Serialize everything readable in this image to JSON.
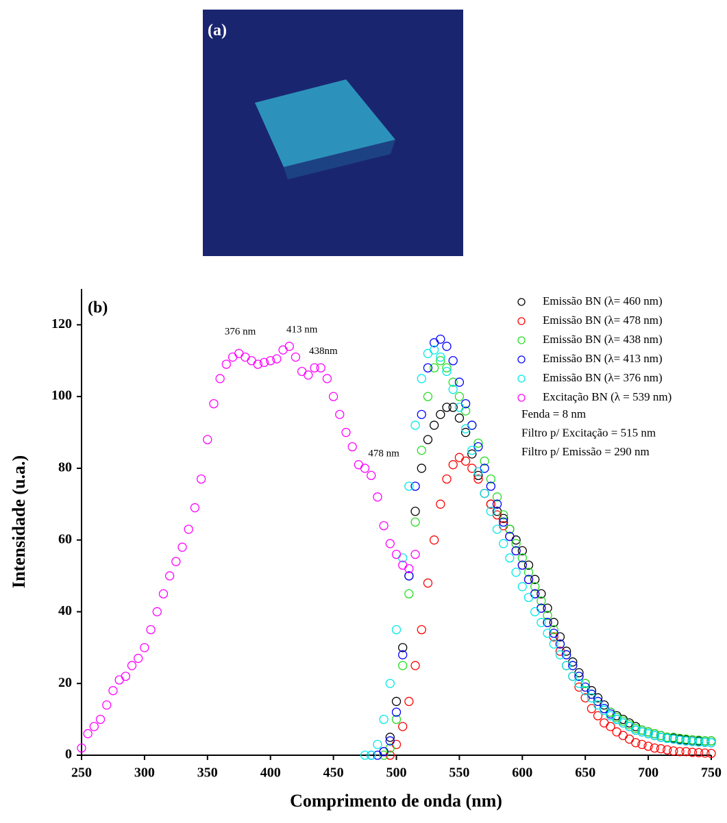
{
  "photo": {
    "label": "(a)"
  },
  "chart_data": {
    "type": "scatter",
    "panel_label": "(b)",
    "x_label": "Comprimento de onda (nm)",
    "y_label": "Intensidade (u.a.)",
    "xlim": [
      250,
      750
    ],
    "xticks": [
      250,
      300,
      350,
      400,
      450,
      500,
      550,
      600,
      650,
      700,
      750
    ],
    "ylim": [
      0,
      130
    ],
    "yticks": [
      0,
      20,
      40,
      60,
      80,
      100,
      120
    ],
    "x": [
      250,
      255,
      260,
      265,
      270,
      275,
      280,
      285,
      290,
      295,
      300,
      305,
      310,
      315,
      320,
      325,
      330,
      335,
      340,
      345,
      350,
      355,
      360,
      365,
      370,
      375,
      380,
      385,
      390,
      395,
      400,
      405,
      410,
      415,
      420,
      425,
      430,
      435,
      440,
      445,
      450,
      455,
      460,
      465,
      470,
      475,
      480,
      485,
      490,
      495,
      500,
      505,
      510,
      515,
      520,
      525,
      530,
      535,
      540,
      545,
      550,
      555,
      560,
      565,
      570,
      575,
      580,
      585,
      590,
      595,
      600,
      605,
      610,
      615,
      620,
      625,
      630,
      635,
      640,
      645,
      650,
      655,
      660,
      665,
      670,
      675,
      680,
      685,
      690,
      695,
      700,
      705,
      710,
      715,
      720,
      725,
      730,
      735,
      740,
      745,
      750
    ],
    "series": [
      {
        "name": "Emissão BN (λ= 460 nm)",
        "color": "#000000",
        "values": [
          null,
          null,
          null,
          null,
          null,
          null,
          null,
          null,
          null,
          null,
          null,
          null,
          null,
          null,
          null,
          null,
          null,
          null,
          null,
          null,
          null,
          null,
          null,
          null,
          null,
          null,
          null,
          null,
          null,
          null,
          null,
          null,
          null,
          null,
          null,
          null,
          null,
          null,
          null,
          null,
          null,
          null,
          null,
          null,
          null,
          null,
          null,
          null,
          1,
          5,
          15,
          30,
          50,
          68,
          80,
          88,
          92,
          95,
          97,
          97,
          94,
          90,
          84,
          78,
          73,
          70,
          68,
          66,
          63,
          60,
          57,
          53,
          49,
          45,
          41,
          37,
          33,
          29,
          26,
          23,
          20,
          18,
          16,
          14,
          12,
          11,
          10,
          9,
          8,
          7,
          6.5,
          6,
          5.5,
          5,
          4.8,
          4.5,
          4.3,
          4.2,
          4,
          4,
          4
        ]
      },
      {
        "name": "Emissão BN (λ= 478 nm)",
        "color": "#ff0000",
        "values": [
          null,
          null,
          null,
          null,
          null,
          null,
          null,
          null,
          null,
          null,
          null,
          null,
          null,
          null,
          null,
          null,
          null,
          null,
          null,
          null,
          null,
          null,
          null,
          null,
          null,
          null,
          null,
          null,
          null,
          null,
          null,
          null,
          null,
          null,
          null,
          null,
          null,
          null,
          null,
          null,
          null,
          null,
          null,
          null,
          null,
          null,
          null,
          null,
          null,
          0,
          3,
          8,
          15,
          25,
          35,
          48,
          60,
          70,
          77,
          81,
          83,
          82,
          80,
          77,
          73,
          70,
          67,
          64,
          61,
          57,
          53,
          49,
          45,
          41,
          37,
          33,
          29,
          25,
          22,
          19,
          16,
          13,
          11,
          9,
          8,
          6.5,
          5.5,
          4.5,
          3.5,
          3,
          2.5,
          2,
          1.8,
          1.5,
          1.2,
          1,
          1,
          0.8,
          0.7,
          0.6,
          0.5
        ]
      },
      {
        "name": "Emissão BN (λ= 438 nm)",
        "color": "#22dd22",
        "values": [
          null,
          null,
          null,
          null,
          null,
          null,
          null,
          null,
          null,
          null,
          null,
          null,
          null,
          null,
          null,
          null,
          null,
          null,
          null,
          null,
          null,
          null,
          null,
          null,
          null,
          null,
          null,
          null,
          null,
          null,
          null,
          null,
          null,
          null,
          null,
          null,
          null,
          null,
          null,
          null,
          null,
          null,
          null,
          null,
          null,
          null,
          null,
          null,
          0,
          2,
          10,
          25,
          45,
          65,
          85,
          100,
          108,
          110,
          108,
          104,
          100,
          96,
          92,
          87,
          82,
          77,
          72,
          67,
          63,
          59,
          55,
          51,
          47,
          43,
          39,
          35,
          31,
          28,
          25,
          22,
          20,
          17,
          15,
          13,
          12,
          10.5,
          9.5,
          8.5,
          7.5,
          7,
          6.5,
          6,
          5.5,
          5,
          5,
          4.7,
          4.5,
          4.3,
          4.2,
          4,
          4
        ]
      },
      {
        "name": "Emissão BN (λ= 413 nm)",
        "color": "#0000ff",
        "values": [
          null,
          null,
          null,
          null,
          null,
          null,
          null,
          null,
          null,
          null,
          null,
          null,
          null,
          null,
          null,
          null,
          null,
          null,
          null,
          null,
          null,
          null,
          null,
          null,
          null,
          null,
          null,
          null,
          null,
          null,
          null,
          null,
          null,
          null,
          null,
          null,
          null,
          null,
          null,
          null,
          null,
          null,
          null,
          null,
          null,
          null,
          0,
          0,
          1,
          4,
          12,
          28,
          50,
          75,
          95,
          108,
          115,
          116,
          114,
          110,
          104,
          98,
          92,
          86,
          80,
          75,
          70,
          65,
          61,
          57,
          53,
          49,
          45,
          41,
          37,
          34,
          31,
          28,
          25,
          22,
          19,
          17,
          15,
          13,
          11.5,
          10,
          9,
          8,
          7,
          6.5,
          6,
          5.5,
          5,
          4.7,
          4.5,
          4.2,
          4,
          3.8,
          3.7,
          3.6,
          3.5
        ]
      },
      {
        "name": "Emissão BN (λ= 376 nm)",
        "color": "#00e8e8",
        "values": [
          null,
          null,
          null,
          null,
          null,
          null,
          null,
          null,
          null,
          null,
          null,
          null,
          null,
          null,
          null,
          null,
          null,
          null,
          null,
          null,
          null,
          null,
          null,
          null,
          null,
          null,
          null,
          null,
          null,
          null,
          null,
          null,
          null,
          null,
          null,
          null,
          null,
          null,
          null,
          null,
          null,
          null,
          null,
          null,
          null,
          0,
          0,
          3,
          10,
          20,
          35,
          55,
          75,
          92,
          105,
          112,
          113,
          111,
          107,
          102,
          97,
          91,
          85,
          79,
          73,
          68,
          63,
          59,
          55,
          51,
          47,
          44,
          40,
          37,
          34,
          31,
          28,
          25,
          22,
          20,
          18,
          16,
          14,
          12.5,
          11,
          10,
          9,
          8,
          7,
          6.5,
          6,
          5.5,
          5,
          4.7,
          4.5,
          4.2,
          4,
          3.8,
          3.7,
          3.6,
          3.5
        ]
      },
      {
        "name": "Excitação BN (λ = 539 nm)",
        "color": "#ff00ff",
        "values": [
          2,
          6,
          8,
          10,
          14,
          18,
          21,
          22,
          25,
          27,
          30,
          35,
          40,
          45,
          50,
          54,
          58,
          63,
          69,
          77,
          88,
          98,
          105,
          109,
          111,
          112,
          111,
          110,
          109,
          109.5,
          110,
          110.5,
          113,
          114,
          111,
          107,
          106,
          108,
          108,
          105,
          100,
          95,
          90,
          86,
          81,
          80,
          78,
          72,
          64,
          59,
          56,
          53,
          52,
          56,
          null,
          null,
          null,
          null,
          null,
          null,
          null,
          null,
          null,
          null,
          null,
          null,
          null,
          null,
          null,
          null,
          null,
          null,
          null,
          null,
          null,
          null,
          null,
          null,
          null,
          null,
          null,
          null,
          null,
          null,
          null,
          null,
          null,
          null,
          null,
          null,
          null,
          null,
          null,
          null,
          null,
          null,
          null,
          null,
          null,
          null,
          null
        ]
      }
    ],
    "notes": [
      "Fenda = 8 nm",
      "Filtro p/ Excitação = 515 nm",
      "Filtro p/ Emissão = 290 nm"
    ],
    "annotations": [
      {
        "text": "376 nm",
        "x": 376,
        "y": 118
      },
      {
        "text": "413 nm",
        "x": 425,
        "y": 118.5
      },
      {
        "text": "438nm",
        "x": 442,
        "y": 112.5
      },
      {
        "text": "478 nm",
        "x": 490,
        "y": 84
      }
    ]
  }
}
